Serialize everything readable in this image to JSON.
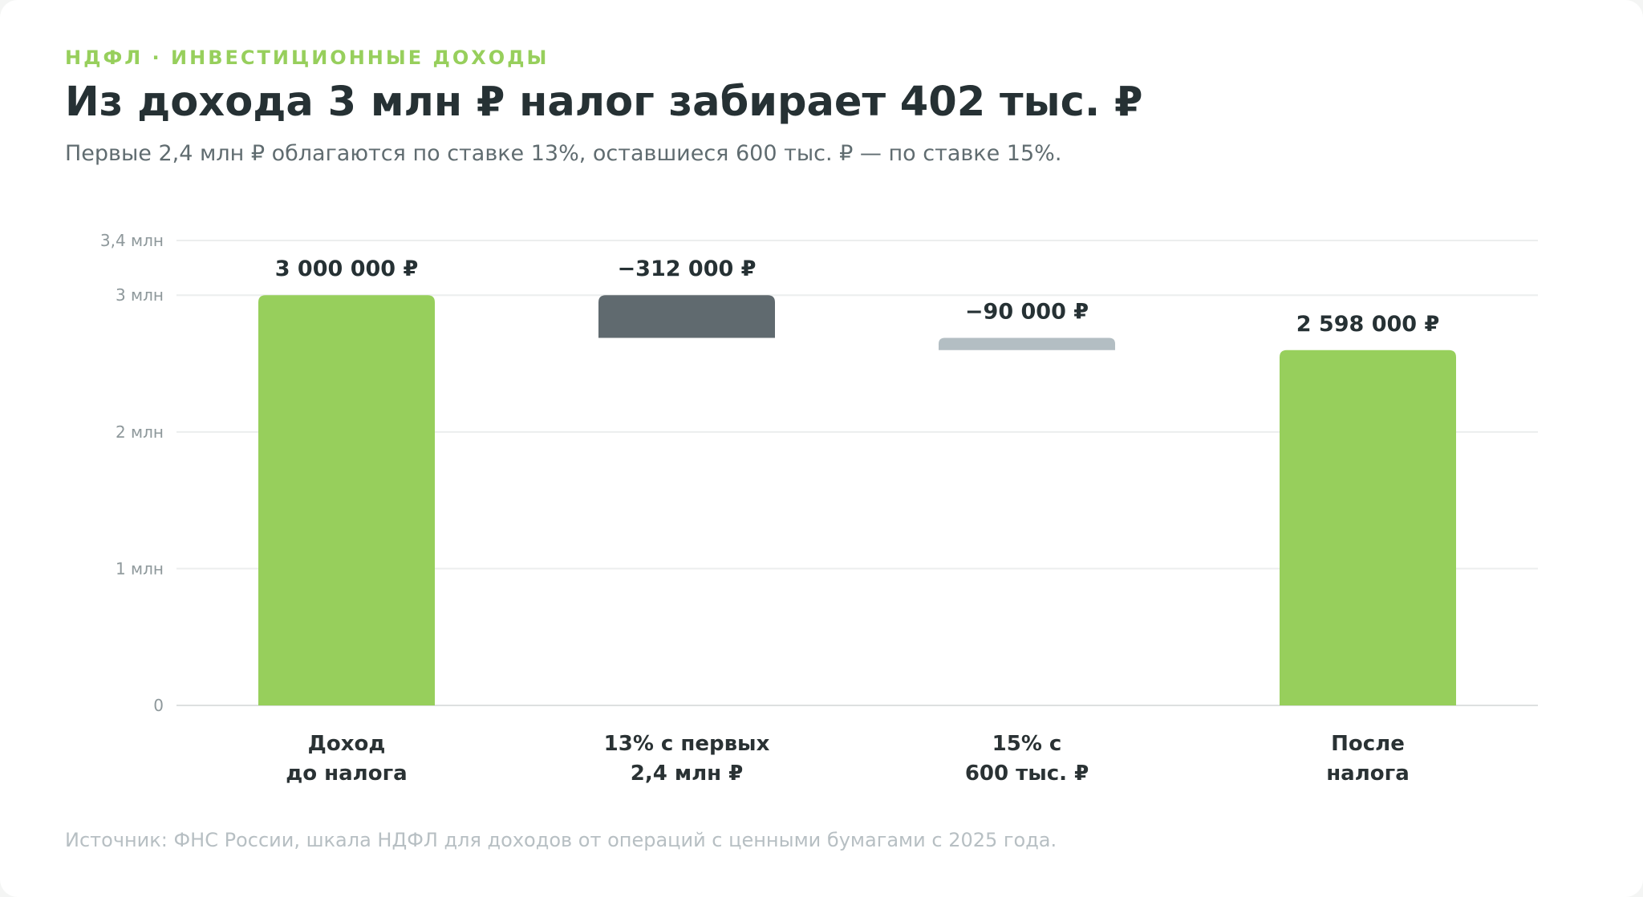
{
  "header": {
    "kicker": "НДФЛ · ИНВЕСТИЦИОННЫЕ ДОХОДЫ",
    "title": "Из дохода 3 млн ₽ налог забирает 402 тыс. ₽",
    "subtitle": "Первые 2,4 млн ₽ облагаются по ставке 13%, оставшиеся 600 тыс. ₽ — по ставке 15%."
  },
  "footer": {
    "source": "Источник: ФНС России, шкала НДФЛ для доходов от операций с ценными бумагами с 2025 года."
  },
  "colors": {
    "total": "#97cf5c",
    "tax13": "#606a6f",
    "tax15": "#b3bec3",
    "text": "#263134"
  },
  "chart_data": {
    "type": "bar",
    "subtype": "waterfall",
    "ylim": [
      0,
      3400000
    ],
    "y_ticks": [
      {
        "value": 0,
        "label": "0"
      },
      {
        "value": 1000000,
        "label": "1 млн"
      },
      {
        "value": 2000000,
        "label": "2 млн"
      },
      {
        "value": 3000000,
        "label": "3 млн"
      },
      {
        "value": 3400000,
        "label": "3,4 млн"
      }
    ],
    "grid": true,
    "bars": [
      {
        "category": [
          "Доход",
          "до налога"
        ],
        "start": 0,
        "end": 3000000,
        "value": 3000000,
        "label": "3 000 000 ₽",
        "color_key": "total"
      },
      {
        "category": [
          "13% с первых",
          "2,4 млн ₽"
        ],
        "start": 3000000,
        "end": 2688000,
        "value": -312000,
        "label": "−312 000 ₽",
        "color_key": "tax13"
      },
      {
        "category": [
          "15% с",
          "600 тыс. ₽"
        ],
        "start": 2688000,
        "end": 2598000,
        "value": -90000,
        "label": "−90 000 ₽",
        "color_key": "tax15"
      },
      {
        "category": [
          "После",
          "налога"
        ],
        "start": 0,
        "end": 2598000,
        "value": 2598000,
        "label": "2 598 000 ₽",
        "color_key": "total"
      }
    ]
  }
}
